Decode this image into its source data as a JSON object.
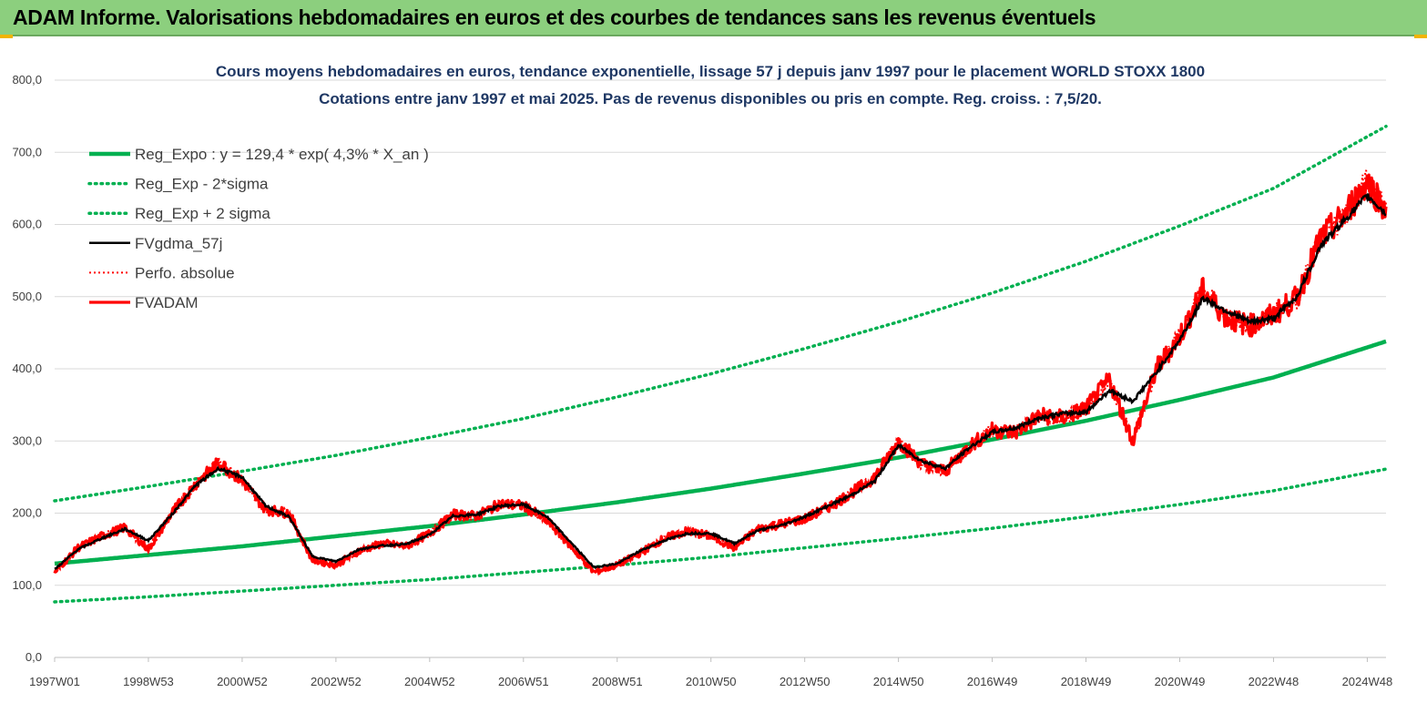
{
  "banner": {
    "title": "ADAM Informe. Valorisations hebdomadaires en euros et des courbes de tendances sans les revenus éventuels"
  },
  "chart_data": {
    "type": "line",
    "title_line1": "Cours moyens hebdomadaires en euros, tendance exponentielle, lissage 57 j depuis janv 1997 pour le placement WORLD STOXX 1800",
    "title_line2": "Cotations entre janv 1997 et mai 2025. Pas de revenus disponibles ou pris en compte. Reg. croiss. : 7,5/20.",
    "xlabel": "",
    "ylabel": "",
    "ylim": [
      0,
      800
    ],
    "xlim": [
      1997.0,
      2025.4
    ],
    "y_ticks": [
      "0,0",
      "100,0",
      "200,0",
      "300,0",
      "400,0",
      "500,0",
      "600,0",
      "700,0",
      "800,0"
    ],
    "x_ticks": [
      "1997W01",
      "1998W53",
      "2000W52",
      "2002W52",
      "2004W52",
      "2006W51",
      "2008W51",
      "2010W50",
      "2012W50",
      "2014W50",
      "2016W49",
      "2018W49",
      "2020W49",
      "2022W48",
      "2024W48"
    ],
    "grid": true,
    "legend_position": "top-left",
    "colors": {
      "reg_expo": "#00b050",
      "reg_band": "#00b050",
      "fvgdma": "#000000",
      "perfo": "#ff0000",
      "fvadam": "#ff0000",
      "grid": "#d9d9d9",
      "title": "#1f3864",
      "banner": "#8ccf7e"
    },
    "series": [
      {
        "name": "Reg_Expo : y = 129,4 * exp( 4,3% *  X_an )",
        "style": "solid-thick",
        "x": [
          1997.0,
          1999.0,
          2001.0,
          2003.0,
          2005.0,
          2007.0,
          2009.0,
          2011.0,
          2013.0,
          2015.0,
          2017.0,
          2019.0,
          2021.0,
          2023.0,
          2025.4
        ],
        "values": [
          130,
          142,
          154,
          168,
          182,
          198,
          215,
          234,
          255,
          277,
          302,
          328,
          357,
          388,
          438
        ]
      },
      {
        "name": "Reg_Exp - 2*sigma",
        "style": "dotted",
        "x": [
          1997.0,
          1999.0,
          2001.0,
          2003.0,
          2005.0,
          2007.0,
          2009.0,
          2011.0,
          2013.0,
          2015.0,
          2017.0,
          2019.0,
          2021.0,
          2023.0,
          2025.4
        ],
        "values": [
          77,
          84,
          92,
          100,
          108,
          118,
          128,
          139,
          152,
          165,
          179,
          195,
          212,
          231,
          261
        ]
      },
      {
        "name": "Reg_Exp + 2 sigma",
        "style": "dotted",
        "x": [
          1997.0,
          1999.0,
          2001.0,
          2003.0,
          2005.0,
          2007.0,
          2009.0,
          2011.0,
          2013.0,
          2015.0,
          2017.0,
          2019.0,
          2021.0,
          2023.0,
          2025.4
        ],
        "values": [
          217,
          237,
          258,
          280,
          305,
          331,
          361,
          393,
          428,
          465,
          505,
          549,
          598,
          650,
          736
        ]
      },
      {
        "name": "FVgdma_57j",
        "style": "solid",
        "x": [
          1997.0,
          1997.5,
          1998.0,
          1998.5,
          1999.0,
          1999.5,
          2000.0,
          2000.5,
          2001.0,
          2001.5,
          2002.0,
          2002.5,
          2003.0,
          2003.5,
          2004.0,
          2004.5,
          2005.0,
          2005.5,
          2006.0,
          2006.5,
          2007.0,
          2007.5,
          2008.0,
          2008.5,
          2009.0,
          2009.5,
          2010.0,
          2010.5,
          2011.0,
          2011.5,
          2012.0,
          2012.5,
          2013.0,
          2013.5,
          2014.0,
          2014.5,
          2015.0,
          2015.5,
          2016.0,
          2016.5,
          2017.0,
          2017.5,
          2018.0,
          2018.5,
          2019.0,
          2019.5,
          2020.0,
          2020.5,
          2021.0,
          2021.5,
          2022.0,
          2022.5,
          2023.0,
          2023.5,
          2024.0,
          2024.5,
          2025.0,
          2025.4
        ],
        "values": [
          122,
          150,
          165,
          178,
          162,
          198,
          238,
          262,
          250,
          210,
          195,
          140,
          133,
          150,
          155,
          157,
          170,
          196,
          198,
          210,
          212,
          195,
          160,
          125,
          130,
          148,
          162,
          172,
          172,
          158,
          176,
          183,
          195,
          210,
          225,
          245,
          294,
          272,
          262,
          290,
          312,
          318,
          332,
          338,
          340,
          370,
          355,
          395,
          440,
          498,
          480,
          465,
          470,
          500,
          570,
          605,
          640,
          615
        ]
      },
      {
        "name": "Perfo. absolue",
        "style": "dotted-red",
        "x": [
          1997.0,
          1997.5,
          1998.0,
          1998.5,
          1999.0,
          1999.5,
          2000.0,
          2000.5,
          2001.0,
          2001.5,
          2002.0,
          2002.5,
          2003.0,
          2003.5,
          2004.0,
          2004.5,
          2005.0,
          2005.5,
          2006.0,
          2006.5,
          2007.0,
          2007.5,
          2008.0,
          2008.5,
          2009.0,
          2009.5,
          2010.0,
          2010.5,
          2011.0,
          2011.5,
          2012.0,
          2012.5,
          2013.0,
          2013.5,
          2014.0,
          2014.5,
          2015.0,
          2015.5,
          2016.0,
          2016.5,
          2017.0,
          2017.5,
          2018.0,
          2018.5,
          2019.0,
          2019.5,
          2020.0,
          2020.5,
          2021.0,
          2021.5,
          2022.0,
          2022.5,
          2023.0,
          2023.5,
          2024.0,
          2024.5,
          2025.0,
          2025.4
        ],
        "values": [
          118,
          152,
          168,
          180,
          150,
          200,
          240,
          270,
          245,
          205,
          200,
          135,
          128,
          148,
          158,
          154,
          172,
          198,
          196,
          213,
          210,
          190,
          155,
          118,
          128,
          145,
          165,
          175,
          168,
          152,
          178,
          185,
          192,
          208,
          228,
          250,
          300,
          268,
          258,
          292,
          315,
          312,
          335,
          332,
          345,
          385,
          300,
          400,
          445,
          510,
          470,
          460,
          475,
          498,
          580,
          612,
          660,
          620
        ]
      },
      {
        "name": "FVADAM",
        "style": "solid-thick-red",
        "x": [
          1997.0,
          1997.5,
          1998.0,
          1998.5,
          1999.0,
          1999.5,
          2000.0,
          2000.5,
          2001.0,
          2001.5,
          2002.0,
          2002.5,
          2003.0,
          2003.5,
          2004.0,
          2004.5,
          2005.0,
          2005.5,
          2006.0,
          2006.5,
          2007.0,
          2007.5,
          2008.0,
          2008.5,
          2009.0,
          2009.5,
          2010.0,
          2010.5,
          2011.0,
          2011.5,
          2012.0,
          2012.5,
          2013.0,
          2013.5,
          2014.0,
          2014.5,
          2015.0,
          2015.5,
          2016.0,
          2016.5,
          2017.0,
          2017.5,
          2018.0,
          2018.5,
          2019.0,
          2019.5,
          2020.0,
          2020.5,
          2021.0,
          2021.5,
          2022.0,
          2022.5,
          2023.0,
          2023.5,
          2024.0,
          2024.5,
          2025.0,
          2025.4
        ],
        "values": [
          118,
          152,
          168,
          180,
          150,
          200,
          240,
          270,
          245,
          205,
          200,
          135,
          128,
          148,
          158,
          154,
          172,
          198,
          196,
          213,
          210,
          190,
          155,
          118,
          128,
          145,
          165,
          175,
          168,
          152,
          178,
          185,
          192,
          208,
          228,
          250,
          300,
          268,
          258,
          292,
          315,
          312,
          335,
          332,
          345,
          385,
          300,
          400,
          445,
          510,
          470,
          460,
          475,
          498,
          580,
          612,
          660,
          620
        ]
      }
    ]
  }
}
